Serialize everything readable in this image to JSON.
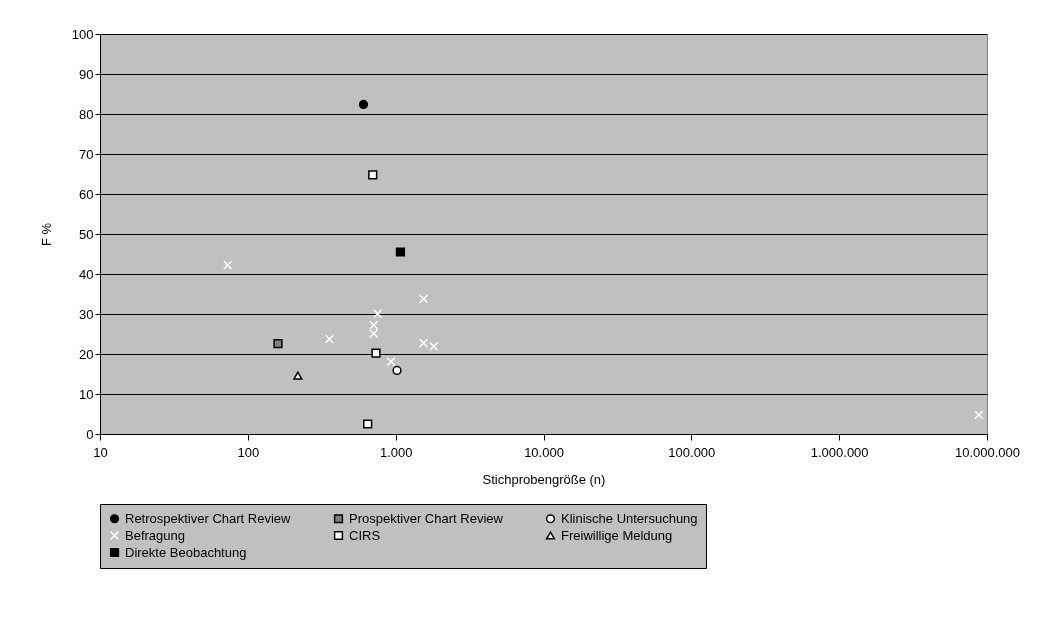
{
  "chart_data": {
    "type": "scatter",
    "xlabel": "Stichprobengröße (n)",
    "ylabel": "F %",
    "log": "x",
    "grid": "y",
    "legend": "bottom",
    "xlim": [
      10,
      10000000
    ],
    "xticks": [
      10,
      100,
      {
        "value": 1000,
        "label": "1.000"
      },
      {
        "value": 10000,
        "label": "10.000"
      },
      {
        "value": 100000,
        "label": "100.000"
      },
      {
        "value": 1000000,
        "label": "1.000.000"
      },
      {
        "value": 10000000,
        "label": "10.000.000"
      }
    ],
    "ylim": [
      0,
      100
    ],
    "yticks": [
      0,
      10,
      20,
      30,
      40,
      50,
      60,
      70,
      80,
      90,
      100
    ],
    "series": [
      {
        "name": "Retrospektiver Chart Review",
        "color": "#000000",
        "marker": "circle",
        "x": [
          606
        ],
        "values": [
          82.4
        ]
      },
      {
        "name": "Prospektiver Chart Review",
        "color": "#808080",
        "marker": "square",
        "x": [
          160
        ],
        "values": [
          22.6
        ]
      },
      {
        "name": "Klinische Untersuchung",
        "color": "#ffffff",
        "marker": "circle",
        "x": [
          1021
        ],
        "values": [
          15.9
        ]
      },
      {
        "name": "Befragung",
        "color": "#ffffff",
        "marker": "cross",
        "x": [
          73,
          356,
          755,
          710,
          710,
          1545,
          1545,
          1808,
          929,
          8800000
        ],
        "values": [
          42.2,
          23.7,
          30.1,
          27.2,
          25.1,
          33.8,
          22.7,
          21.9,
          18.1,
          4.8
        ]
      },
      {
        "name": "CIRS",
        "color": "#ffffff",
        "marker": "square",
        "x": [
          700,
          736,
          647
        ],
        "values": [
          64.8,
          20.2,
          2.5
        ]
      },
      {
        "name": "Freiwillige Meldung",
        "color": "#ffffff",
        "marker": "triangle",
        "x": [
          218
        ],
        "values": [
          14.6
        ]
      },
      {
        "name": "Direkte Beobachtung",
        "color": "#000000",
        "marker": "square",
        "x": [
          1077
        ],
        "values": [
          45.5
        ]
      }
    ]
  }
}
